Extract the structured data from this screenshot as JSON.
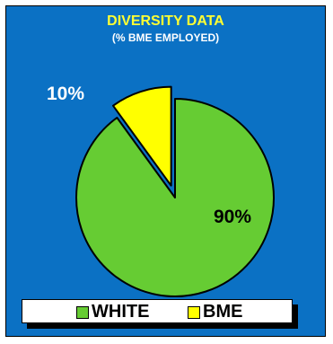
{
  "chart_data": {
    "type": "pie",
    "title": "DIVERSITY DATA",
    "subtitle": "(% BME EMPLOYED)",
    "slices": [
      {
        "label": "WHITE",
        "value": 90,
        "value_label": "90%",
        "color": "#66cc33",
        "exploded": false
      },
      {
        "label": "BME",
        "value": 10,
        "value_label": "10%",
        "color": "#ffff00",
        "exploded": true
      }
    ],
    "legend_placement": "bottom",
    "background_color": "#0b71c4",
    "title_color": "#ffff33"
  }
}
